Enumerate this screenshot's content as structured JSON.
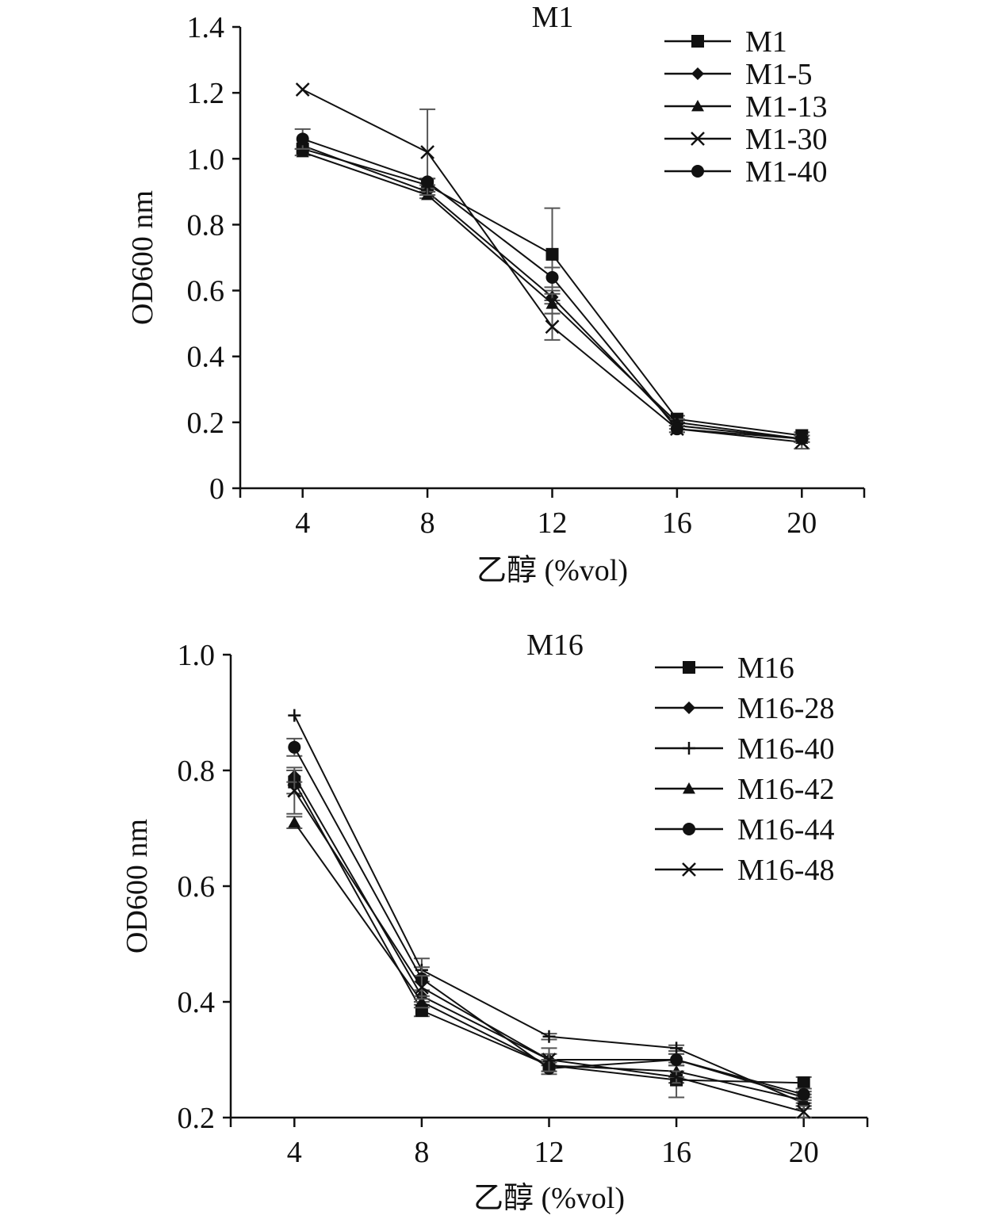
{
  "chart_data": [
    {
      "type": "line",
      "title": "M1",
      "xlabel": "乙醇 (%vol)",
      "ylabel": "OD600 nm",
      "x": [
        4,
        8,
        12,
        16,
        20
      ],
      "xtick_labels": [
        "4",
        "8",
        "12",
        "16",
        "20"
      ],
      "ylim": [
        0,
        1.4
      ],
      "ytick_values": [
        0,
        0.2,
        0.4,
        0.6,
        0.8,
        1.0,
        1.2,
        1.4
      ],
      "ytick_labels": [
        "0",
        "0.2",
        "0.4",
        "0.6",
        "0.8",
        "1.0",
        "1.2",
        "1.4"
      ],
      "grid": false,
      "legend_position": "top-right",
      "series": [
        {
          "name": "M1",
          "marker": "square",
          "values": [
            1.03,
            0.92,
            0.71,
            0.21,
            0.16
          ],
          "errors": [
            0,
            0.02,
            0.14,
            0.01,
            0.01
          ]
        },
        {
          "name": "M1-5",
          "marker": "diamond",
          "values": [
            1.04,
            0.9,
            0.58,
            0.19,
            0.15
          ],
          "errors": [
            0,
            0.01,
            0.02,
            0.01,
            0.01
          ]
        },
        {
          "name": "M1-13",
          "marker": "triangle",
          "values": [
            1.02,
            0.89,
            0.56,
            0.2,
            0.15
          ],
          "errors": [
            0.01,
            0.01,
            0.03,
            0.01,
            0.01
          ]
        },
        {
          "name": "M1-30",
          "marker": "x",
          "values": [
            1.21,
            1.02,
            0.49,
            0.18,
            0.14
          ],
          "errors": [
            0,
            0.13,
            0.04,
            0.01,
            0.02
          ]
        },
        {
          "name": "M1-40",
          "marker": "circle",
          "values": [
            1.06,
            0.93,
            0.64,
            0.18,
            0.15
          ],
          "errors": [
            0.03,
            0.01,
            0.03,
            0.01,
            0.01
          ]
        }
      ]
    },
    {
      "type": "line",
      "title": "M16",
      "xlabel": "乙醇 (%vol)",
      "ylabel": "OD600 nm",
      "x": [
        4,
        8,
        12,
        16,
        20
      ],
      "xtick_labels": [
        "4",
        "8",
        "12",
        "16",
        "20"
      ],
      "ylim": [
        0.2,
        1.0
      ],
      "ytick_values": [
        0.2,
        0.4,
        0.6,
        0.8,
        1.0
      ],
      "ytick_labels": [
        "0.2",
        "0.4",
        "0.6",
        "0.8",
        "1.0"
      ],
      "grid": false,
      "legend_position": "top-right",
      "series": [
        {
          "name": "M16",
          "marker": "square",
          "values": [
            0.78,
            0.385,
            0.29,
            0.265,
            0.26
          ],
          "errors": [
            0.02,
            0.01,
            0.01,
            0.03,
            0.01
          ]
        },
        {
          "name": "M16-28",
          "marker": "diamond",
          "values": [
            0.79,
            0.41,
            0.3,
            0.3,
            0.235
          ],
          "errors": [
            0.01,
            0.01,
            0.01,
            0.01,
            0.01
          ]
        },
        {
          "name": "M16-40",
          "marker": "plus",
          "values": [
            0.895,
            0.455,
            0.34,
            0.32,
            0.225
          ],
          "errors": [
            0,
            0.02,
            0.005,
            0.005,
            0.01
          ]
        },
        {
          "name": "M16-42",
          "marker": "triangle",
          "values": [
            0.71,
            0.4,
            0.29,
            0.28,
            0.23
          ],
          "errors": [
            0.01,
            0.01,
            0.01,
            0.01,
            0.01
          ]
        },
        {
          "name": "M16-44",
          "marker": "circle",
          "values": [
            0.84,
            0.44,
            0.285,
            0.3,
            0.24
          ],
          "errors": [
            0.015,
            0.02,
            0.01,
            0.01,
            0.01
          ]
        },
        {
          "name": "M16-48",
          "marker": "x",
          "values": [
            0.765,
            0.425,
            0.3,
            0.27,
            0.21
          ],
          "errors": [
            0.04,
            0.02,
            0.02,
            0.01,
            0.01
          ]
        }
      ]
    }
  ]
}
